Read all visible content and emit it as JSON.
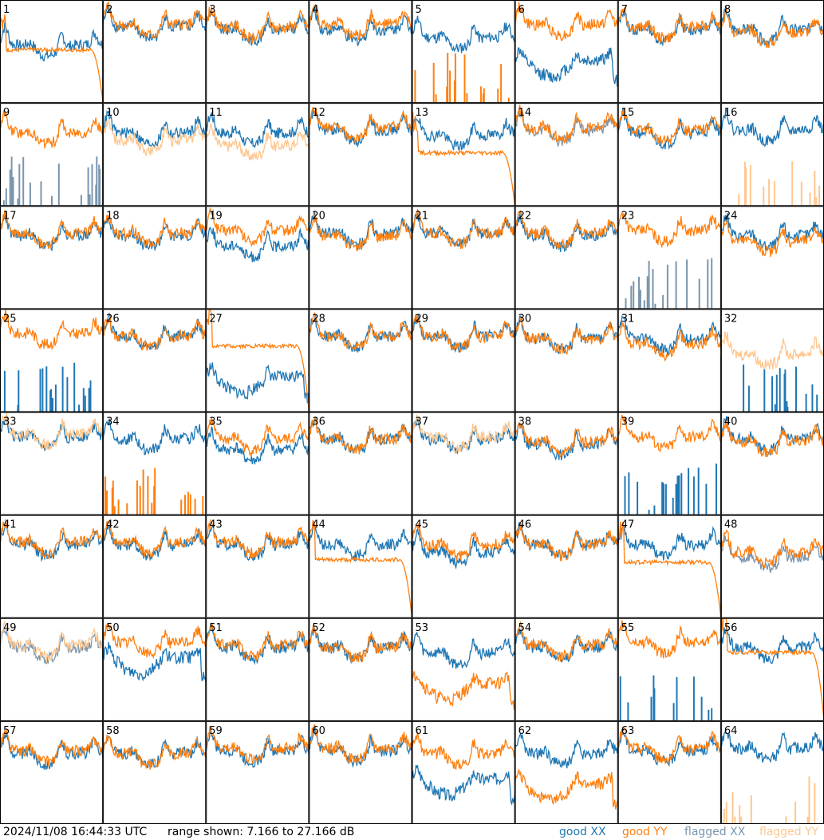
{
  "footer": {
    "timestamp": "2024/11/08 16:44:33 UTC",
    "range_text": "range shown: 7.166 to 27.166 dB"
  },
  "legend": {
    "good_xx": "good XX",
    "good_yy": "good YY",
    "flagged_xx": "flagged XX",
    "flagged_yy": "flagged YY"
  },
  "colors": {
    "good_xx": "#1f77b4",
    "good_yy": "#ff7f0e",
    "flagged_xx": "#7a95ad",
    "flagged_yy": "#ffc68e"
  },
  "chart_data": {
    "type": "line",
    "grid_rows": 8,
    "grid_cols": 8,
    "ylim": [
      7.166,
      27.166
    ],
    "ylabel": "",
    "xlabel": "",
    "panels": [
      {
        "label": "1",
        "xx": "good",
        "yy": "good",
        "xx_shape": "normal",
        "yy_shape": "droop",
        "xx_level": 18.5,
        "yy_level": 17.5
      },
      {
        "label": "2",
        "xx": "good",
        "yy": "good",
        "xx_shape": "normal",
        "yy_shape": "normal",
        "xx_level": 22.0,
        "yy_level": 22.5
      },
      {
        "label": "3",
        "xx": "good",
        "yy": "good",
        "xx_shape": "normal",
        "yy_shape": "normal",
        "xx_level": 21.5,
        "yy_level": 22.0
      },
      {
        "label": "4",
        "xx": "good",
        "yy": "good",
        "xx_shape": "normal",
        "yy_shape": "normal",
        "xx_level": 21.5,
        "yy_level": 22.5
      },
      {
        "label": "5",
        "xx": "good",
        "yy": "good",
        "xx_shape": "normal",
        "yy_shape": "spikes",
        "xx_level": 20.0,
        "yy_level": 7.5
      },
      {
        "label": "6",
        "xx": "good",
        "yy": "good",
        "xx_shape": "dip",
        "yy_shape": "normal",
        "xx_level": 15.5,
        "yy_level": 22.5
      },
      {
        "label": "7",
        "xx": "good",
        "yy": "good",
        "xx_shape": "normal",
        "yy_shape": "normal",
        "xx_level": 21.5,
        "yy_level": 22.0
      },
      {
        "label": "8",
        "xx": "good",
        "yy": "good",
        "xx_shape": "normal",
        "yy_shape": "normal",
        "xx_level": 21.5,
        "yy_level": 21.0
      },
      {
        "label": "9",
        "xx": "flagged",
        "yy": "good",
        "xx_shape": "spikes",
        "yy_shape": "normal",
        "xx_level": 7.5,
        "yy_level": 21.5
      },
      {
        "label": "10",
        "xx": "good",
        "yy": "flagged",
        "xx_shape": "normal",
        "yy_shape": "normal",
        "xx_level": 21.5,
        "yy_level": 20.0
      },
      {
        "label": "11",
        "xx": "good",
        "yy": "flagged",
        "xx_shape": "normal",
        "yy_shape": "normal",
        "xx_level": 21.5,
        "yy_level": 19.0
      },
      {
        "label": "12",
        "xx": "good",
        "yy": "good",
        "xx_shape": "normal",
        "yy_shape": "normal",
        "xx_level": 22.0,
        "yy_level": 22.5
      },
      {
        "label": "13",
        "xx": "good",
        "yy": "good",
        "xx_shape": "normal",
        "yy_shape": "droop",
        "xx_level": 21.0,
        "yy_level": 17.5
      },
      {
        "label": "14",
        "xx": "flagged",
        "yy": "good",
        "xx_shape": "normal",
        "yy_shape": "normal",
        "xx_level": 22.0,
        "yy_level": 22.5
      },
      {
        "label": "15",
        "xx": "good",
        "yy": "good",
        "xx_shape": "normal",
        "yy_shape": "normal",
        "xx_level": 21.5,
        "yy_level": 22.0
      },
      {
        "label": "16",
        "xx": "good",
        "yy": "flagged",
        "xx_shape": "normal",
        "yy_shape": "spikes",
        "xx_level": 22.0,
        "yy_level": 7.5
      },
      {
        "label": "17",
        "xx": "good",
        "yy": "good",
        "xx_shape": "normal",
        "yy_shape": "normal",
        "xx_level": 21.5,
        "yy_level": 22.0
      },
      {
        "label": "18",
        "xx": "good",
        "yy": "good",
        "xx_shape": "normal",
        "yy_shape": "normal",
        "xx_level": 21.5,
        "yy_level": 22.0
      },
      {
        "label": "19",
        "xx": "good",
        "yy": "good",
        "xx_shape": "normal",
        "yy_shape": "normal",
        "xx_level": 19.5,
        "yy_level": 22.5
      },
      {
        "label": "20",
        "xx": "good",
        "yy": "good",
        "xx_shape": "normal",
        "yy_shape": "normal",
        "xx_level": 22.0,
        "yy_level": 21.5
      },
      {
        "label": "21",
        "xx": "good",
        "yy": "good",
        "xx_shape": "normal",
        "yy_shape": "normal",
        "xx_level": 22.0,
        "yy_level": 22.0
      },
      {
        "label": "22",
        "xx": "good",
        "yy": "good",
        "xx_shape": "normal",
        "yy_shape": "normal",
        "xx_level": 21.5,
        "yy_level": 22.0
      },
      {
        "label": "23",
        "xx": "flagged",
        "yy": "good",
        "xx_shape": "spikes",
        "yy_shape": "normal",
        "xx_level": 7.5,
        "yy_level": 22.5
      },
      {
        "label": "24",
        "xx": "good",
        "yy": "good",
        "xx_shape": "normal",
        "yy_shape": "normal",
        "xx_level": 21.5,
        "yy_level": 20.5
      },
      {
        "label": "25",
        "xx": "good",
        "yy": "good",
        "xx_shape": "spikes",
        "yy_shape": "normal",
        "xx_level": 7.5,
        "yy_level": 22.5
      },
      {
        "label": "26",
        "xx": "good",
        "yy": "good",
        "xx_shape": "normal",
        "yy_shape": "normal",
        "xx_level": 22.0,
        "yy_level": 22.0
      },
      {
        "label": "27",
        "xx": "good",
        "yy": "good",
        "xx_shape": "dip",
        "yy_shape": "droop",
        "xx_level": 14.0,
        "yy_level": 20.0
      },
      {
        "label": "28",
        "xx": "good",
        "yy": "good",
        "xx_shape": "normal",
        "yy_shape": "normal",
        "xx_level": 22.0,
        "yy_level": 22.0
      },
      {
        "label": "29",
        "xx": "good",
        "yy": "good",
        "xx_shape": "normal",
        "yy_shape": "normal",
        "xx_level": 22.0,
        "yy_level": 22.0
      },
      {
        "label": "30",
        "xx": "good",
        "yy": "good",
        "xx_shape": "normal",
        "yy_shape": "normal",
        "xx_level": 21.5,
        "yy_level": 21.5
      },
      {
        "label": "31",
        "xx": "good",
        "yy": "good",
        "xx_shape": "normal",
        "yy_shape": "normal",
        "xx_level": 21.5,
        "yy_level": 20.5
      },
      {
        "label": "32",
        "xx": "good",
        "yy": "flagged",
        "xx_shape": "spikes",
        "yy_shape": "normal",
        "xx_level": 7.5,
        "yy_level": 18.5
      },
      {
        "label": "33",
        "xx": "good",
        "yy": "flagged",
        "xx_shape": "normal",
        "yy_shape": "normal",
        "xx_level": 22.5,
        "yy_level": 23.0
      },
      {
        "label": "34",
        "xx": "good",
        "yy": "good",
        "xx_shape": "normal",
        "yy_shape": "spikes",
        "xx_level": 22.0,
        "yy_level": 7.5
      },
      {
        "label": "35",
        "xx": "good",
        "yy": "good",
        "xx_shape": "normal",
        "yy_shape": "normal",
        "xx_level": 20.0,
        "yy_level": 22.0
      },
      {
        "label": "36",
        "xx": "good",
        "yy": "good",
        "xx_shape": "normal",
        "yy_shape": "normal",
        "xx_level": 22.0,
        "yy_level": 22.0
      },
      {
        "label": "37",
        "xx": "good",
        "yy": "flagged",
        "xx_shape": "normal",
        "yy_shape": "normal",
        "xx_level": 22.0,
        "yy_level": 22.5
      },
      {
        "label": "38",
        "xx": "good",
        "yy": "good",
        "xx_shape": "normal",
        "yy_shape": "normal",
        "xx_level": 21.0,
        "yy_level": 21.5
      },
      {
        "label": "39",
        "xx": "good",
        "yy": "good",
        "xx_shape": "spikes",
        "yy_shape": "normal",
        "xx_level": 7.5,
        "yy_level": 22.5
      },
      {
        "label": "40",
        "xx": "good",
        "yy": "good",
        "xx_shape": "normal",
        "yy_shape": "normal",
        "xx_level": 22.0,
        "yy_level": 21.5
      },
      {
        "label": "41",
        "xx": "good",
        "yy": "good",
        "xx_shape": "normal",
        "yy_shape": "normal",
        "xx_level": 21.5,
        "yy_level": 22.0
      },
      {
        "label": "42",
        "xx": "good",
        "yy": "good",
        "xx_shape": "normal",
        "yy_shape": "normal",
        "xx_level": 21.5,
        "yy_level": 22.0
      },
      {
        "label": "43",
        "xx": "good",
        "yy": "good",
        "xx_shape": "normal",
        "yy_shape": "normal",
        "xx_level": 21.5,
        "yy_level": 22.0
      },
      {
        "label": "44",
        "xx": "good",
        "yy": "good",
        "xx_shape": "normal",
        "yy_shape": "droop",
        "xx_level": 21.5,
        "yy_level": 18.5
      },
      {
        "label": "45",
        "xx": "good",
        "yy": "good",
        "xx_shape": "normal",
        "yy_shape": "normal",
        "xx_level": 20.0,
        "yy_level": 21.5
      },
      {
        "label": "46",
        "xx": "good",
        "yy": "good",
        "xx_shape": "normal",
        "yy_shape": "normal",
        "xx_level": 21.5,
        "yy_level": 21.5
      },
      {
        "label": "47",
        "xx": "good",
        "yy": "good",
        "xx_shape": "normal",
        "yy_shape": "droop",
        "xx_level": 21.5,
        "yy_level": 18.0
      },
      {
        "label": "48",
        "xx": "flagged",
        "yy": "good",
        "xx_shape": "normal",
        "yy_shape": "normal",
        "xx_level": 19.0,
        "yy_level": 20.0
      },
      {
        "label": "49",
        "xx": "flagged",
        "yy": "flagged",
        "xx_shape": "normal",
        "yy_shape": "normal",
        "xx_level": 21.5,
        "yy_level": 22.0
      },
      {
        "label": "50",
        "xx": "good",
        "yy": "good",
        "xx_shape": "dip",
        "yy_shape": "normal",
        "xx_level": 19.5,
        "yy_level": 22.5
      },
      {
        "label": "51",
        "xx": "good",
        "yy": "good",
        "xx_shape": "normal",
        "yy_shape": "normal",
        "xx_level": 21.5,
        "yy_level": 22.0
      },
      {
        "label": "52",
        "xx": "good",
        "yy": "good",
        "xx_shape": "normal",
        "yy_shape": "normal",
        "xx_level": 21.5,
        "yy_level": 21.5
      },
      {
        "label": "53",
        "xx": "good",
        "yy": "good",
        "xx_shape": "normal",
        "yy_shape": "dip",
        "xx_level": 20.5,
        "yy_level": 14.5
      },
      {
        "label": "54",
        "xx": "good",
        "yy": "good",
        "xx_shape": "normal",
        "yy_shape": "normal",
        "xx_level": 21.5,
        "yy_level": 22.0
      },
      {
        "label": "55",
        "xx": "good",
        "yy": "good",
        "xx_shape": "spikes",
        "yy_shape": "normal",
        "xx_level": 7.5,
        "yy_level": 22.5
      },
      {
        "label": "56",
        "xx": "good",
        "yy": "good",
        "xx_shape": "normal",
        "yy_shape": "droop",
        "xx_level": 21.5,
        "yy_level": 20.5
      },
      {
        "label": "57",
        "xx": "good",
        "yy": "good",
        "xx_shape": "normal",
        "yy_shape": "normal",
        "xx_level": 21.0,
        "yy_level": 21.5
      },
      {
        "label": "58",
        "xx": "good",
        "yy": "good",
        "xx_shape": "normal",
        "yy_shape": "normal",
        "xx_level": 21.0,
        "yy_level": 21.0
      },
      {
        "label": "59",
        "xx": "good",
        "yy": "good",
        "xx_shape": "normal",
        "yy_shape": "normal",
        "xx_level": 21.5,
        "yy_level": 22.0
      },
      {
        "label": "60",
        "xx": "good",
        "yy": "good",
        "xx_shape": "normal",
        "yy_shape": "normal",
        "xx_level": 21.5,
        "yy_level": 22.0
      },
      {
        "label": "61",
        "xx": "good",
        "yy": "good",
        "xx_shape": "dip",
        "yy_shape": "normal",
        "xx_level": 16.0,
        "yy_level": 21.0
      },
      {
        "label": "62",
        "xx": "good",
        "yy": "good",
        "xx_shape": "normal",
        "yy_shape": "dip",
        "xx_level": 21.0,
        "yy_level": 15.0
      },
      {
        "label": "63",
        "xx": "good",
        "yy": "good",
        "xx_shape": "normal",
        "yy_shape": "normal",
        "xx_level": 21.5,
        "yy_level": 22.0
      },
      {
        "label": "64",
        "xx": "good",
        "yy": "flagged",
        "xx_shape": "normal",
        "yy_shape": "spikes",
        "xx_level": 22.0,
        "yy_level": 7.5
      }
    ]
  }
}
